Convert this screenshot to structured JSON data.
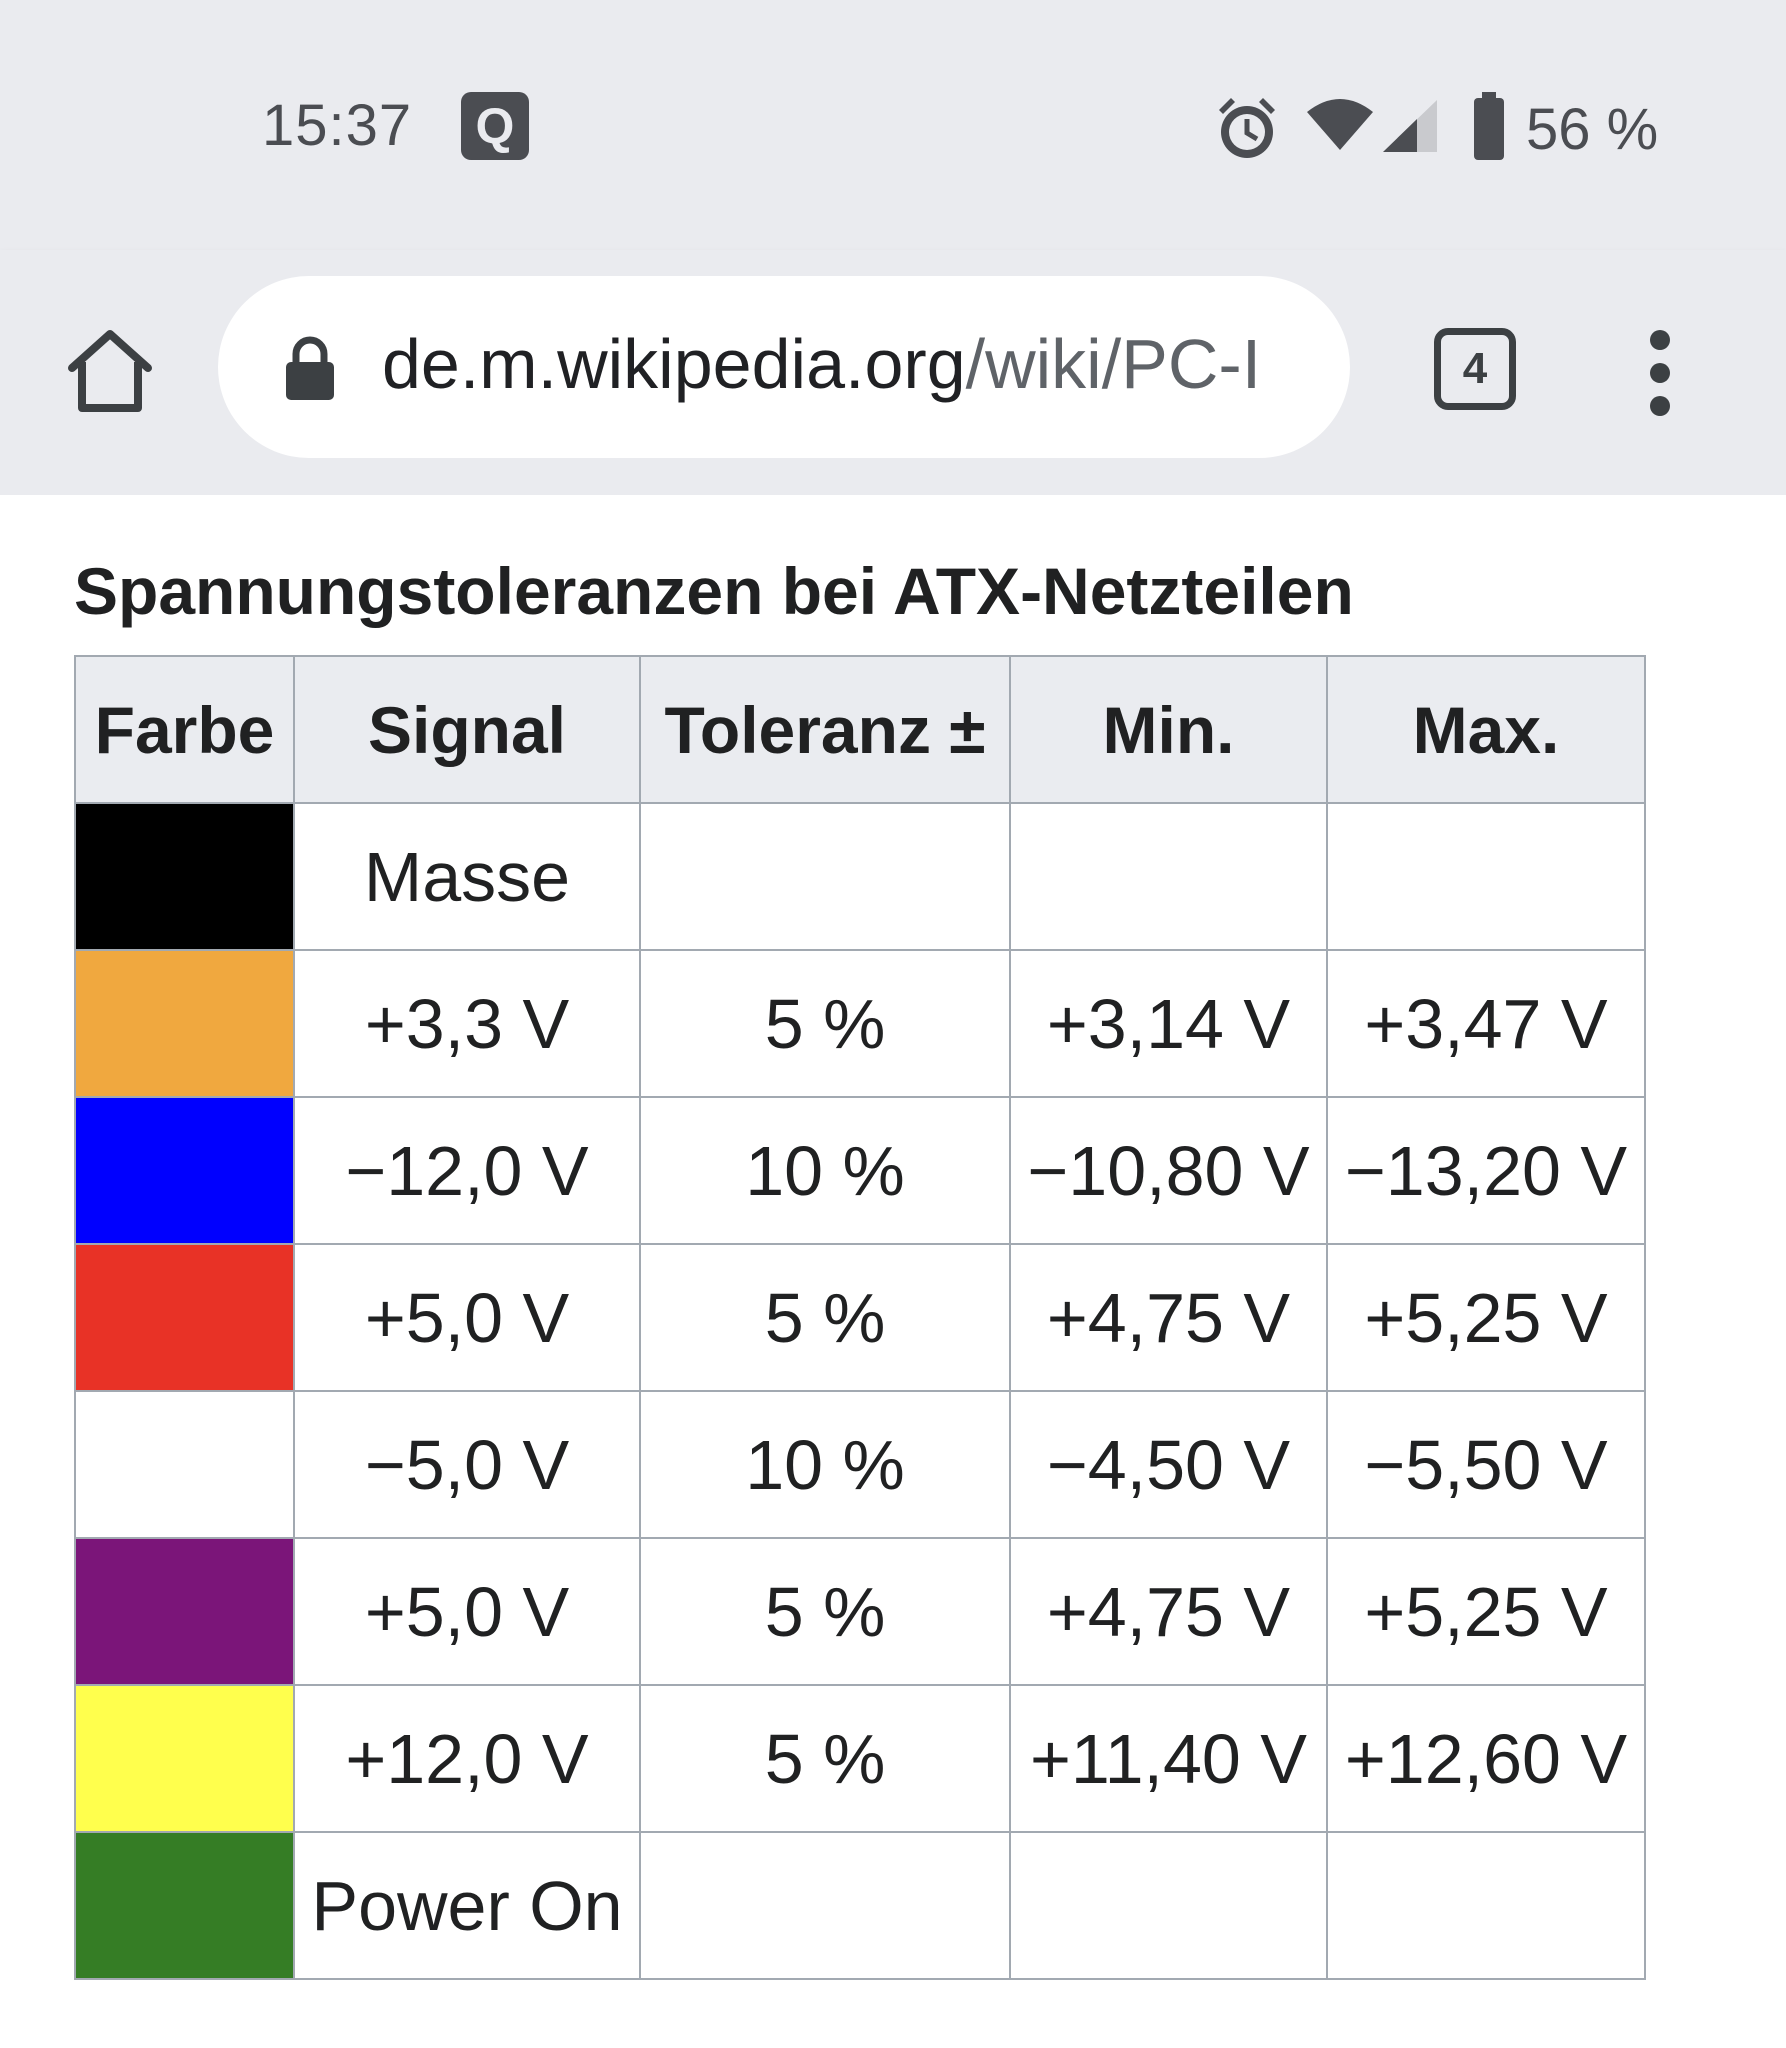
{
  "status_bar": {
    "time": "15:37",
    "notification_icon": "Q",
    "battery": "56 %",
    "icons": [
      "alarm-icon",
      "wifi-icon",
      "signal-icon",
      "battery-icon"
    ]
  },
  "browser": {
    "url_host": "de.m.wikipedia.org",
    "url_path": "/wiki/PC-I",
    "tab_count": "4"
  },
  "table": {
    "caption": "Spannungstoleranzen bei ATX-Netzteilen",
    "headers": [
      "Farbe",
      "Signal",
      "Toleranz ±",
      "Min.",
      "Max."
    ],
    "rows": [
      {
        "color": "#000000",
        "signal": "Masse",
        "tolerance": "",
        "min": "",
        "max": ""
      },
      {
        "color": "#f0a83f",
        "signal": "+3,3 V",
        "tolerance": "5 %",
        "min": "+3,14 V",
        "max": "+3,47 V"
      },
      {
        "color": "#0000ff",
        "signal": "−12,0 V",
        "tolerance": "10 %",
        "min": "−10,80 V",
        "max": "−13,20 V"
      },
      {
        "color": "#e83226",
        "signal": "+5,0 V",
        "tolerance": "5 %",
        "min": "+4,75 V",
        "max": "+5,25 V"
      },
      {
        "color": "#ffffff",
        "signal": "−5,0 V",
        "tolerance": "10 %",
        "min": "−4,50 V",
        "max": "−5,50 V"
      },
      {
        "color": "#7b1579",
        "signal": "+5,0 V",
        "tolerance": "5 %",
        "min": "+4,75 V",
        "max": "+5,25 V"
      },
      {
        "color": "#ffff4d",
        "signal": "+12,0 V",
        "tolerance": "5 %",
        "min": "+11,40 V",
        "max": "+12,60 V"
      },
      {
        "color": "#357d25",
        "signal": "Power On",
        "tolerance": "",
        "min": "",
        "max": ""
      }
    ]
  }
}
